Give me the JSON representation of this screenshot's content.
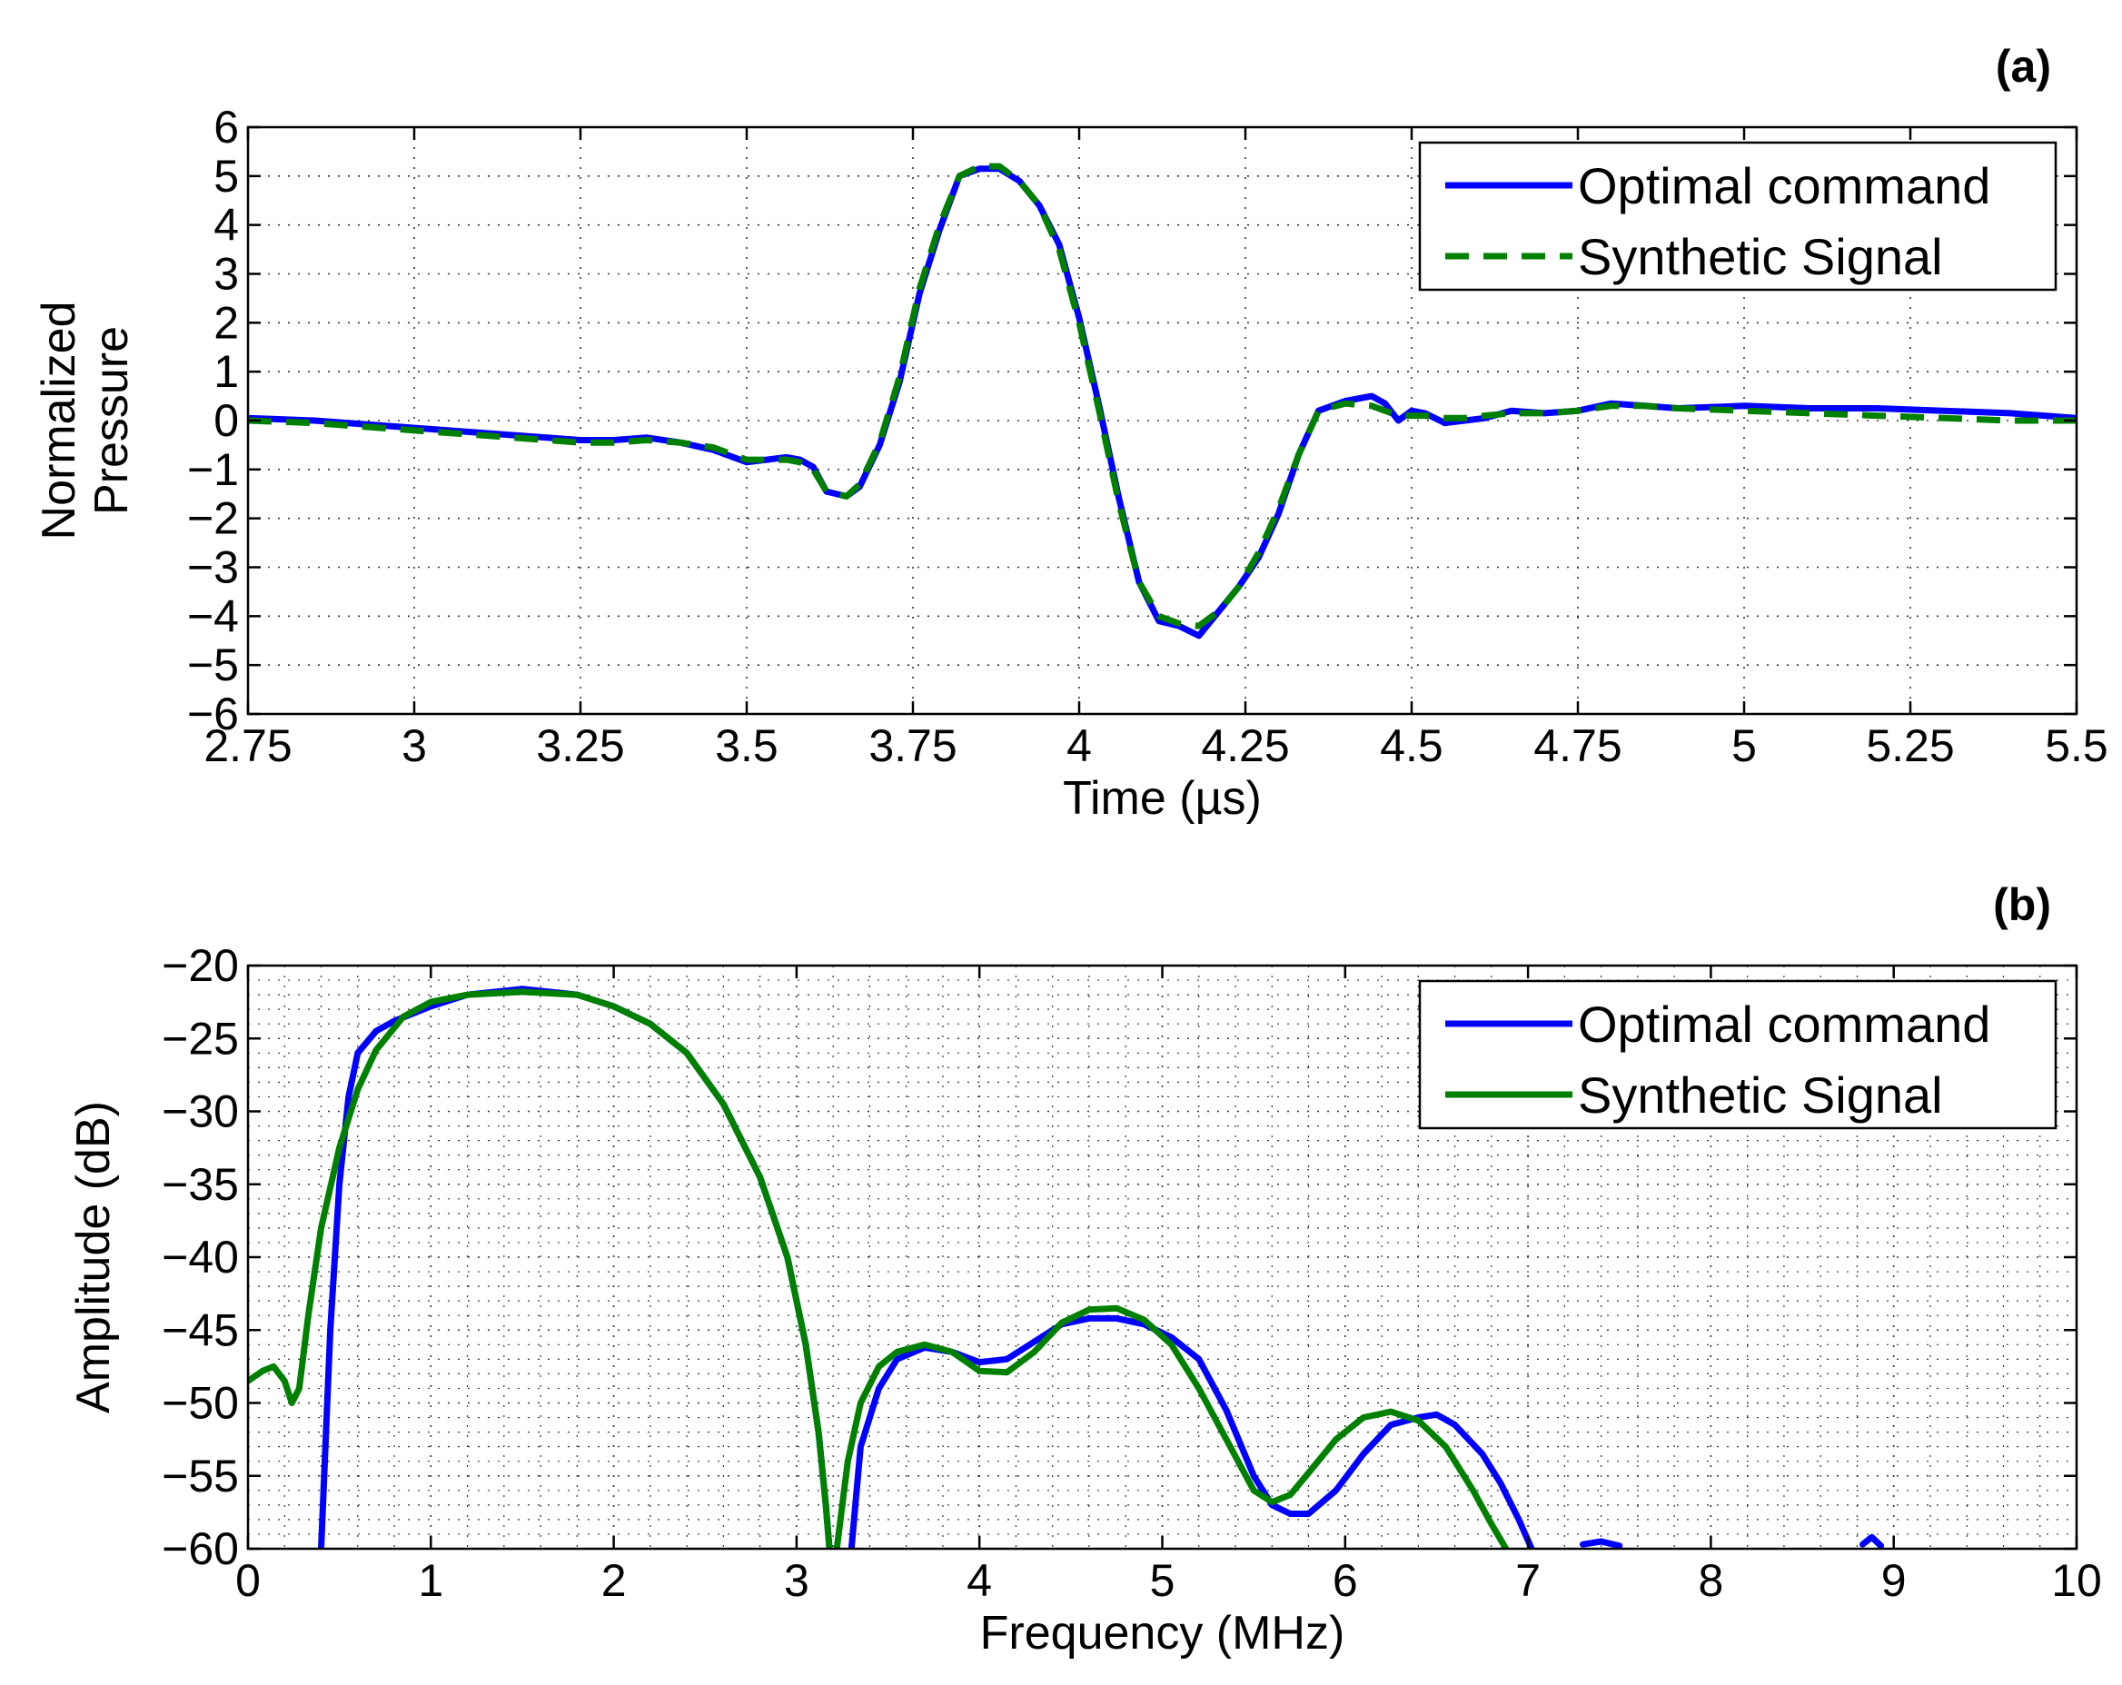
{
  "chart_data": [
    {
      "type": "line",
      "panel_label": "(a)",
      "xlabel": "Time (µs)",
      "ylabel_lines": [
        "Normalized",
        "Pressure"
      ],
      "xlim": [
        2.75,
        5.5
      ],
      "ylim": [
        -6,
        6
      ],
      "xticks": [
        2.75,
        3,
        3.25,
        3.5,
        3.75,
        4,
        4.25,
        4.5,
        4.75,
        5,
        5.25,
        5.5
      ],
      "xtick_labels": [
        "2.75",
        "3",
        "3.25",
        "3.5",
        "3.75",
        "4",
        "4.25",
        "4.5",
        "4.75",
        "5",
        "5.25",
        "5.5"
      ],
      "yticks": [
        -6,
        -5,
        -4,
        -3,
        -2,
        -1,
        0,
        1,
        2,
        3,
        4,
        5,
        6
      ],
      "ytick_labels": [
        "−6",
        "−5",
        "−4",
        "−3",
        "−2",
        "−1",
        "0",
        "1",
        "2",
        "3",
        "4",
        "5",
        "6"
      ],
      "grid": true,
      "legend_position": "top-right",
      "series": [
        {
          "name": "Optimal command",
          "color": "#0000ff",
          "dash": "solid",
          "x": [
            2.75,
            2.85,
            2.95,
            3.05,
            3.15,
            3.25,
            3.3,
            3.35,
            3.4,
            3.45,
            3.5,
            3.53,
            3.56,
            3.58,
            3.6,
            3.62,
            3.65,
            3.67,
            3.7,
            3.73,
            3.76,
            3.79,
            3.82,
            3.85,
            3.88,
            3.91,
            3.94,
            3.97,
            4.0,
            4.03,
            4.06,
            4.09,
            4.12,
            4.15,
            4.18,
            4.21,
            4.24,
            4.27,
            4.3,
            4.33,
            4.36,
            4.4,
            4.44,
            4.46,
            4.48,
            4.5,
            4.52,
            4.55,
            4.58,
            4.61,
            4.65,
            4.7,
            4.75,
            4.8,
            4.85,
            4.9,
            5.0,
            5.1,
            5.2,
            5.3,
            5.4,
            5.5
          ],
          "y": [
            0.05,
            0.0,
            -0.1,
            -0.2,
            -0.3,
            -0.4,
            -0.4,
            -0.35,
            -0.45,
            -0.6,
            -0.85,
            -0.8,
            -0.75,
            -0.8,
            -0.95,
            -1.45,
            -1.55,
            -1.35,
            -0.5,
            0.8,
            2.6,
            3.9,
            5.0,
            5.15,
            5.15,
            4.9,
            4.4,
            3.6,
            2.1,
            0.3,
            -1.6,
            -3.3,
            -4.1,
            -4.2,
            -4.4,
            -3.9,
            -3.4,
            -2.8,
            -1.9,
            -0.7,
            0.2,
            0.4,
            0.5,
            0.35,
            0.0,
            0.2,
            0.15,
            -0.05,
            0.0,
            0.05,
            0.2,
            0.15,
            0.2,
            0.35,
            0.3,
            0.25,
            0.3,
            0.25,
            0.25,
            0.2,
            0.15,
            0.05
          ]
        },
        {
          "name": "Synthetic Signal",
          "color": "#008000",
          "dash": "dashed",
          "x": [
            2.75,
            2.85,
            2.95,
            3.05,
            3.15,
            3.25,
            3.3,
            3.35,
            3.4,
            3.45,
            3.5,
            3.53,
            3.56,
            3.58,
            3.6,
            3.62,
            3.65,
            3.67,
            3.7,
            3.73,
            3.76,
            3.79,
            3.82,
            3.85,
            3.88,
            3.91,
            3.94,
            3.97,
            4.0,
            4.03,
            4.06,
            4.09,
            4.12,
            4.15,
            4.18,
            4.21,
            4.24,
            4.27,
            4.3,
            4.33,
            4.36,
            4.4,
            4.44,
            4.46,
            4.48,
            4.5,
            4.52,
            4.55,
            4.58,
            4.61,
            4.65,
            4.7,
            4.75,
            4.8,
            4.85,
            4.9,
            5.0,
            5.1,
            5.2,
            5.3,
            5.4,
            5.5
          ],
          "y": [
            0.0,
            -0.05,
            -0.15,
            -0.25,
            -0.35,
            -0.45,
            -0.45,
            -0.4,
            -0.45,
            -0.55,
            -0.8,
            -0.8,
            -0.8,
            -0.85,
            -1.0,
            -1.45,
            -1.55,
            -1.3,
            -0.45,
            0.9,
            2.7,
            4.0,
            5.0,
            5.2,
            5.2,
            4.9,
            4.4,
            3.5,
            2.0,
            0.2,
            -1.7,
            -3.3,
            -4.0,
            -4.15,
            -4.2,
            -3.9,
            -3.4,
            -2.7,
            -1.8,
            -0.7,
            0.2,
            0.35,
            0.3,
            0.2,
            0.1,
            0.1,
            0.1,
            0.05,
            0.05,
            0.1,
            0.15,
            0.15,
            0.2,
            0.3,
            0.3,
            0.25,
            0.2,
            0.15,
            0.1,
            0.05,
            0.0,
            0.0
          ]
        }
      ]
    },
    {
      "type": "line",
      "panel_label": "(b)",
      "xlabel": "Frequency (MHz)",
      "ylabel": "Amplitude (dB)",
      "xlim": [
        0,
        10
      ],
      "ylim": [
        -60,
        -20
      ],
      "xticks": [
        0,
        1,
        2,
        3,
        4,
        5,
        6,
        7,
        8,
        9,
        10
      ],
      "xtick_labels": [
        "0",
        "1",
        "2",
        "3",
        "4",
        "5",
        "6",
        "7",
        "8",
        "9",
        "10"
      ],
      "yticks": [
        -60,
        -55,
        -50,
        -45,
        -40,
        -35,
        -30,
        -25,
        -20
      ],
      "ytick_labels": [
        "−60",
        "−55",
        "−50",
        "−45",
        "−40",
        "−35",
        "−30",
        "−25",
        "−20"
      ],
      "grid": true,
      "legend_position": "top-right",
      "series": [
        {
          "name": "Optimal command",
          "color": "#0000ff",
          "dash": "solid",
          "segments": [
            {
              "x": [
                0.4,
                0.45,
                0.5,
                0.55,
                0.6,
                0.7,
                0.8,
                1.0,
                1.2,
                1.5,
                1.8,
                2.0,
                2.2,
                2.4,
                2.6,
                2.8,
                2.95,
                3.05,
                3.12,
                3.16,
                3.18
              ],
              "y": [
                -60,
                -45,
                -35,
                -29,
                -26,
                -24.5,
                -23.8,
                -22.8,
                -22.0,
                -21.6,
                -22.0,
                -22.8,
                -24.0,
                -26.0,
                -29.5,
                -34.5,
                -40.0,
                -46.0,
                -52.0,
                -57.0,
                -60
              ]
            },
            {
              "x": [
                3.3,
                3.35,
                3.45,
                3.55,
                3.7,
                3.85,
                4.0,
                4.15,
                4.3,
                4.45,
                4.6,
                4.75,
                4.9,
                5.05,
                5.2,
                5.35,
                5.5,
                5.6,
                5.7,
                5.8,
                5.95,
                6.1,
                6.25,
                6.4,
                6.5,
                6.6,
                6.75,
                6.85,
                6.95,
                7.02
              ],
              "y": [
                -60,
                -53.0,
                -49.0,
                -47.0,
                -46.2,
                -46.5,
                -47.2,
                -47.0,
                -45.8,
                -44.6,
                -44.2,
                -44.2,
                -44.6,
                -45.5,
                -47.0,
                -50.5,
                -55.0,
                -57.0,
                -57.6,
                -57.6,
                -56.0,
                -53.5,
                -51.5,
                -51.0,
                -50.8,
                -51.5,
                -53.5,
                -55.5,
                -58.0,
                -60
              ]
            },
            {
              "x": [
                7.3,
                7.4,
                7.5
              ],
              "y": [
                -59.7,
                -59.5,
                -59.8
              ]
            },
            {
              "x": [
                8.83,
                8.88,
                8.93
              ],
              "y": [
                -59.7,
                -59.2,
                -59.8
              ]
            }
          ]
        },
        {
          "name": "Synthetic Signal",
          "color": "#008000",
          "dash": "solid",
          "segments": [
            {
              "x": [
                0.0,
                0.08,
                0.14,
                0.2,
                0.24,
                0.28,
                0.33,
                0.4,
                0.5,
                0.6,
                0.7,
                0.85,
                1.0,
                1.2,
                1.5,
                1.8,
                2.0,
                2.2,
                2.4,
                2.6,
                2.8,
                2.95,
                3.05,
                3.12,
                3.16,
                3.18
              ],
              "y": [
                -48.5,
                -47.8,
                -47.5,
                -48.5,
                -50.0,
                -49.0,
                -44.0,
                -38.0,
                -32.5,
                -28.5,
                -25.8,
                -23.5,
                -22.5,
                -22.0,
                -21.8,
                -22.0,
                -22.8,
                -24.0,
                -26.0,
                -29.5,
                -34.5,
                -40.0,
                -46.0,
                -52.0,
                -57.0,
                -60
              ]
            },
            {
              "x": [
                3.22,
                3.28,
                3.35,
                3.45,
                3.55,
                3.7,
                3.85,
                4.0,
                4.15,
                4.3,
                4.45,
                4.6,
                4.75,
                4.9,
                5.05,
                5.2,
                5.35,
                5.5,
                5.6,
                5.7,
                5.8,
                5.95,
                6.1,
                6.25,
                6.4,
                6.55,
                6.7,
                6.8,
                6.88
              ],
              "y": [
                -60,
                -54.0,
                -50.0,
                -47.5,
                -46.5,
                -46.0,
                -46.5,
                -47.8,
                -47.9,
                -46.5,
                -44.5,
                -43.6,
                -43.5,
                -44.3,
                -46.0,
                -49.0,
                -52.5,
                -56.0,
                -56.8,
                -56.3,
                -54.8,
                -52.5,
                -51.0,
                -50.6,
                -51.2,
                -53.0,
                -56.0,
                -58.3,
                -60
              ]
            }
          ]
        }
      ]
    }
  ]
}
